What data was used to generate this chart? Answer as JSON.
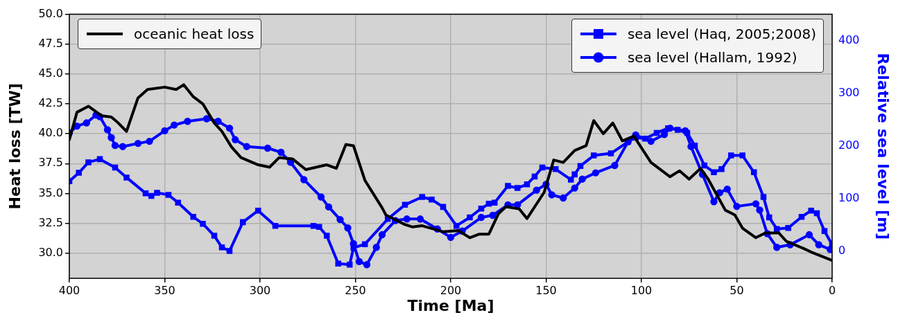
{
  "chart_data": {
    "type": "line",
    "xlabel": "Time [Ma]",
    "ylabel": "Heat loss [TW]",
    "y2label": "Relative sea level [m]",
    "xlim": [
      400,
      0
    ],
    "xticks": [
      400,
      350,
      300,
      250,
      200,
      150,
      100,
      50,
      0
    ],
    "ylim": [
      27.9,
      50
    ],
    "yticks": [
      {
        "value": 30,
        "label": "30.0"
      },
      {
        "value": 32.5,
        "label": "32.5"
      },
      {
        "value": 35,
        "label": "35.0"
      },
      {
        "value": 37.5,
        "label": "37.5"
      },
      {
        "value": 40,
        "label": "40.0"
      },
      {
        "value": 42.5,
        "label": "42.5"
      },
      {
        "value": 45,
        "label": "45.0"
      },
      {
        "value": 47.5,
        "label": "47.5"
      },
      {
        "value": 50,
        "label": "50.0"
      }
    ],
    "y2lim": [
      -52,
      451
    ],
    "y2ticks": [
      0,
      100,
      200,
      300,
      400
    ],
    "grid": true,
    "legend": "top",
    "line_style": "solid",
    "series": [
      {
        "name": "oceanic heat loss",
        "color": "#000000",
        "marker": "none",
        "x": [
          400,
          396,
          390,
          383,
          378,
          375,
          370,
          364,
          359,
          350,
          344,
          340,
          335,
          330,
          324,
          320,
          315,
          310,
          301,
          295,
          290,
          283,
          276,
          265,
          260,
          255,
          251,
          245,
          236,
          234,
          224,
          220,
          215,
          204,
          196,
          190,
          185,
          180,
          175,
          171,
          164,
          160,
          151,
          146,
          141,
          135,
          129,
          125,
          120,
          115,
          110,
          104,
          95,
          85,
          80,
          75,
          69,
          65,
          56,
          51,
          47,
          40,
          35,
          28,
          24,
          15,
          11,
          0
        ],
        "values": [
          39.5,
          41.8,
          42.3,
          41.5,
          41.4,
          41.0,
          40.2,
          43.0,
          43.7,
          43.9,
          43.7,
          44.1,
          43.1,
          42.5,
          40.9,
          40.2,
          38.9,
          38.0,
          37.4,
          37.2,
          38.0,
          37.9,
          37.0,
          37.4,
          37.1,
          39.1,
          39.0,
          36.1,
          33.8,
          33.2,
          32.4,
          32.2,
          32.3,
          31.8,
          31.9,
          31.3,
          31.6,
          31.6,
          33.3,
          33.9,
          33.7,
          32.9,
          35.1,
          37.8,
          37.6,
          38.6,
          39.0,
          41.1,
          40.0,
          40.9,
          39.4,
          39.8,
          37.6,
          36.4,
          36.9,
          36.2,
          37.1,
          36.2,
          33.6,
          33.2,
          32.1,
          31.3,
          31.7,
          31.7,
          31.0,
          30.4,
          30.1,
          29.4
        ]
      },
      {
        "name": "sea level (Haq, 2005;2008)",
        "color": "#0000ff",
        "marker": "square",
        "axis": "y2",
        "x": [
          400,
          395,
          390,
          384,
          376,
          370,
          360,
          357,
          354,
          348,
          343,
          335,
          330,
          324,
          320,
          316,
          309,
          301,
          292,
          272,
          269,
          265,
          259,
          253,
          251,
          245,
          233,
          224,
          215,
          210,
          204,
          197,
          190,
          184,
          180,
          177,
          170,
          165,
          160,
          156,
          152,
          145,
          137,
          135,
          132,
          125,
          116,
          107,
          103,
          98,
          92,
          86,
          81,
          76,
          72,
          67,
          62,
          58,
          53,
          47,
          41,
          36,
          33,
          29,
          23,
          16,
          11,
          8,
          4,
          0
        ],
        "values": [
          133,
          149,
          169,
          175,
          159,
          140,
          110,
          105,
          111,
          107,
          92,
          65,
          52,
          29,
          7,
          0,
          55,
          77,
          48,
          48,
          46,
          29,
          -24,
          -26,
          6,
          13,
          61,
          88,
          103,
          98,
          84,
          48,
          64,
          81,
          90,
          92,
          124,
          120,
          127,
          142,
          159,
          156,
          136,
          146,
          162,
          182,
          186,
          208,
          216,
          214,
          225,
          234,
          231,
          225,
          201,
          163,
          150,
          156,
          182,
          182,
          150,
          103,
          64,
          42,
          44,
          65,
          77,
          72,
          38,
          12
        ]
      },
      {
        "name": "sea level (Hallam, 1992)",
        "color": "#0000ff",
        "marker": "circle",
        "axis": "y2",
        "x": [
          400,
          396,
          391,
          386,
          384,
          380,
          378,
          376,
          372,
          364,
          358,
          350,
          345,
          338,
          328,
          322,
          316,
          313,
          307,
          296,
          289,
          284,
          277,
          268,
          264,
          258,
          254,
          251,
          248,
          244,
          239,
          236,
          229,
          223,
          216,
          207,
          200,
          194,
          184,
          178,
          170,
          165,
          155,
          150,
          147,
          141,
          135,
          131,
          124,
          114,
          107,
          103,
          95,
          88,
          85,
          77,
          74,
          68,
          62,
          59,
          55,
          50,
          40,
          38,
          34,
          29,
          22,
          12,
          7,
          1,
          0
        ],
        "values": [
          225,
          238,
          244,
          259,
          256,
          231,
          216,
          201,
          199,
          205,
          209,
          229,
          240,
          247,
          252,
          247,
          234,
          212,
          199,
          196,
          188,
          169,
          136,
          103,
          84,
          60,
          44,
          14,
          -20,
          -26,
          7,
          31,
          58,
          61,
          61,
          42,
          26,
          38,
          64,
          68,
          88,
          88,
          116,
          127,
          107,
          101,
          120,
          137,
          149,
          163,
          208,
          221,
          209,
          222,
          234,
          229,
          199,
          146,
          94,
          111,
          118,
          85,
          90,
          78,
          33,
          7,
          12,
          31,
          12,
          3,
          3
        ]
      }
    ]
  }
}
